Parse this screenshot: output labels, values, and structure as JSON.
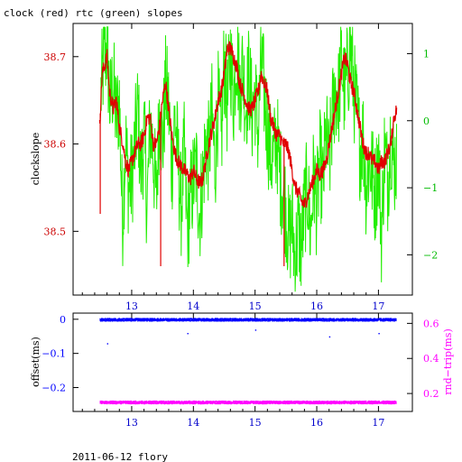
{
  "title": "clock (red) rtc (green) slopes",
  "footer": "2011-06-12 flory",
  "colors": {
    "red": "#e00000",
    "green": "#22ee00",
    "blue": "#0000ff",
    "magenta": "#ff00ff",
    "axis": "#000000"
  },
  "chart_data": [
    {
      "type": "line",
      "x": {
        "ticks": [
          13,
          14,
          15,
          16,
          17
        ],
        "tick_labels": [
          "13",
          "14",
          "15",
          "16",
          "17"
        ],
        "range": [
          12.05,
          17.55
        ]
      },
      "y_left": {
        "label": "clockslope",
        "ticks": [
          38.5,
          38.6,
          38.7
        ],
        "tick_labels": [
          "38.5",
          "38.6",
          "38.7"
        ],
        "range": [
          38.427,
          38.738
        ],
        "color": "#cc0000"
      },
      "y_right": {
        "ticks": [
          -2,
          -1,
          0,
          1
        ],
        "tick_labels": [
          "−2",
          "−1",
          "0",
          "1"
        ],
        "range": [
          -2.6,
          1.45
        ],
        "color": "#00bb00"
      },
      "series": [
        {
          "color": "#e00000",
          "axis": "left",
          "x": [
            12.48,
            12.52,
            12.56,
            12.6,
            12.64,
            12.7,
            12.75,
            12.8,
            12.86,
            12.9,
            12.95,
            13.0,
            13.05,
            13.1,
            13.15,
            13.2,
            13.25,
            13.3,
            13.35,
            13.4,
            13.45,
            13.5,
            13.55,
            13.6,
            13.65,
            13.7,
            13.75,
            13.8,
            13.85,
            13.9,
            13.95,
            14.0,
            14.05,
            14.1,
            14.15,
            14.2,
            14.25,
            14.3,
            14.35,
            14.4,
            14.45,
            14.5,
            14.55,
            14.6,
            14.65,
            14.7,
            14.75,
            14.8,
            14.85,
            14.9,
            14.95,
            15.0,
            15.05,
            15.1,
            15.15,
            15.2,
            15.25,
            15.3,
            15.35,
            15.4,
            15.45,
            15.5,
            15.55,
            15.6,
            15.65,
            15.7,
            15.75,
            15.8,
            15.85,
            15.9,
            15.95,
            16.0,
            16.05,
            16.1,
            16.15,
            16.2,
            16.25,
            16.3,
            16.35,
            16.4,
            16.45,
            16.5,
            16.55,
            16.6,
            16.65,
            16.7,
            16.75,
            16.8,
            16.85,
            16.9,
            16.95,
            17.0,
            17.05,
            17.1,
            17.15,
            17.2,
            17.25,
            17.3
          ],
          "y": [
            38.62,
            38.68,
            38.69,
            38.7,
            38.66,
            38.64,
            38.65,
            38.62,
            38.6,
            38.58,
            38.57,
            38.58,
            38.59,
            38.6,
            38.6,
            38.61,
            38.63,
            38.63,
            38.6,
            38.6,
            38.62,
            38.65,
            38.67,
            38.64,
            38.61,
            38.59,
            38.58,
            38.575,
            38.57,
            38.565,
            38.56,
            38.57,
            38.56,
            38.555,
            38.56,
            38.58,
            38.6,
            38.615,
            38.63,
            38.65,
            38.66,
            38.68,
            38.71,
            38.71,
            38.7,
            38.69,
            38.67,
            38.66,
            38.65,
            38.64,
            38.64,
            38.65,
            38.66,
            38.68,
            38.67,
            38.66,
            38.63,
            38.62,
            38.61,
            38.61,
            38.6,
            38.6,
            38.59,
            38.57,
            38.55,
            38.545,
            38.535,
            38.53,
            38.54,
            38.55,
            38.56,
            38.57,
            38.565,
            38.57,
            38.58,
            38.6,
            38.62,
            38.64,
            38.66,
            38.68,
            38.7,
            38.69,
            38.67,
            38.66,
            38.64,
            38.62,
            38.6,
            38.59,
            38.59,
            38.58,
            38.58,
            38.57,
            38.58,
            38.58,
            38.59,
            38.6,
            38.63,
            38.64
          ],
          "spikes": [
            [
              12.49,
              38.52
            ],
            [
              13.47,
              38.46
            ],
            [
              15.47,
              38.46
            ]
          ]
        },
        {
          "color": "#22ee00",
          "axis": "right",
          "x": [
            12.5,
            12.55,
            12.6,
            12.65,
            12.7,
            12.75,
            12.8,
            12.85,
            12.9,
            12.95,
            13.0,
            13.05,
            13.1,
            13.15,
            13.2,
            13.25,
            13.3,
            13.35,
            13.4,
            13.45,
            13.5,
            13.55,
            13.6,
            13.65,
            13.7,
            13.75,
            13.8,
            13.85,
            13.9,
            13.95,
            14.0,
            14.05,
            14.1,
            14.15,
            14.2,
            14.25,
            14.3,
            14.35,
            14.4,
            14.45,
            14.5,
            14.55,
            14.6,
            14.65,
            14.7,
            14.75,
            14.8,
            14.85,
            14.9,
            14.95,
            15.0,
            15.05,
            15.1,
            15.15,
            15.2,
            15.25,
            15.3,
            15.35,
            15.4,
            15.45,
            15.5,
            15.55,
            15.6,
            15.65,
            15.7,
            15.75,
            15.8,
            15.85,
            15.9,
            15.95,
            16.0,
            16.05,
            16.1,
            16.15,
            16.2,
            16.25,
            16.3,
            16.35,
            16.4,
            16.45,
            16.5,
            16.55,
            16.6,
            16.65,
            16.7,
            16.75,
            16.8,
            16.85,
            16.9,
            16.95,
            17.0,
            17.05,
            17.1,
            17.15,
            17.2,
            17.25,
            17.3
          ],
          "y": [
            0.4,
            0.9,
            1.1,
            0.2,
            0.6,
            0.0,
            0.3,
            -1.5,
            -0.3,
            -1.0,
            -0.9,
            -0.4,
            0.2,
            -0.8,
            -0.2,
            -1.3,
            0.0,
            -0.5,
            -1.2,
            0.2,
            -0.4,
            0.5,
            0.2,
            -0.7,
            0.1,
            -0.6,
            -1.3,
            -0.5,
            -1.6,
            -1.2,
            -0.9,
            -0.7,
            -1.4,
            -0.9,
            -0.3,
            -0.5,
            0.1,
            -0.7,
            0.3,
            -0.4,
            0.9,
            0.2,
            1.0,
            0.3,
            1.1,
            0.5,
            0.8,
            0.2,
            0.7,
            0.1,
            0.4,
            -0.2,
            0.9,
            0.4,
            -0.1,
            -0.5,
            -0.6,
            -0.2,
            -0.8,
            -1.0,
            -1.3,
            -1.8,
            -1.5,
            -2.1,
            -1.6,
            -1.9,
            -1.3,
            -1.0,
            -1.7,
            -0.8,
            -1.3,
            -0.6,
            -1.0,
            -0.2,
            -0.7,
            0.0,
            0.5,
            0.3,
            0.9,
            0.4,
            0.7,
            1.1,
            0.5,
            0.1,
            -0.4,
            -0.2,
            -1.0,
            -0.6,
            -0.8,
            -1.1,
            -0.5,
            -1.7,
            -0.4,
            -0.9,
            -0.2,
            -0.7,
            -0.5
          ]
        }
      ]
    },
    {
      "type": "scatter",
      "x": {
        "ticks": [
          13,
          14,
          15,
          16,
          17
        ],
        "tick_labels": [
          "13",
          "14",
          "15",
          "16",
          "17"
        ],
        "range": [
          12.05,
          17.55
        ]
      },
      "y_left": {
        "label": "offset(ms)",
        "ticks": [
          0,
          -0.1,
          -0.2
        ],
        "tick_labels": [
          "0",
          "−0.1",
          "−0.2"
        ],
        "range": [
          -0.27,
          0.018
        ],
        "color": "#0000ff"
      },
      "y_right": {
        "label": "rnd−trip(ms)",
        "ticks": [
          0.2,
          0.4,
          0.6
        ],
        "tick_labels": [
          "0.2",
          "0.4",
          "0.6"
        ],
        "range": [
          0.0975,
          0.6585
        ],
        "color": "#ff00ff"
      },
      "series": [
        {
          "color": "#0000ff",
          "axis": "left",
          "x_range": [
            12.48,
            17.28
          ],
          "y_center": 0.0,
          "spread": 0.004
        },
        {
          "color": "#ff00ff",
          "axis": "right",
          "x_range": [
            12.48,
            17.28
          ],
          "y_center": 0.152,
          "spread": 0.008
        }
      ],
      "outliers": [
        [
          12.6,
          -0.07
        ],
        [
          13.9,
          -0.04
        ],
        [
          15.0,
          -0.03
        ],
        [
          16.2,
          -0.05
        ],
        [
          17.0,
          -0.04
        ]
      ]
    }
  ]
}
